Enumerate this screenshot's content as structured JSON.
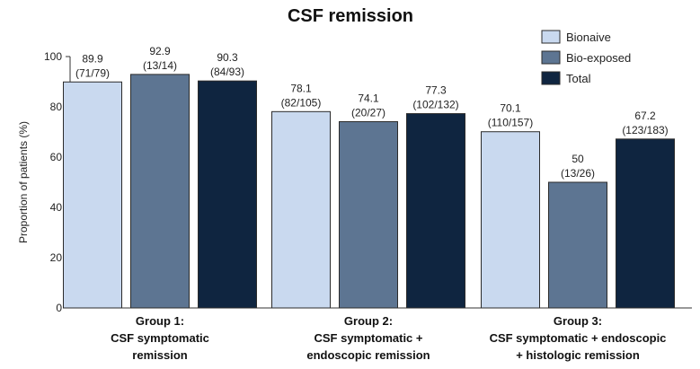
{
  "chart_data": {
    "type": "bar",
    "title": "CSF remission",
    "ylabel": "Proportion of patients (%)",
    "xlabel": "",
    "ylim": [
      0,
      100
    ],
    "yticks": [
      0,
      20,
      40,
      60,
      80,
      100
    ],
    "legend_position": "top-right",
    "grid": false,
    "categories": [
      [
        "Group 1:",
        "CSF symptomatic",
        "remission"
      ],
      [
        "Group 2:",
        "CSF symptomatic +",
        "endoscopic remission"
      ],
      [
        "Group 3:",
        "CSF symptomatic + endoscopic",
        "+ histologic remission"
      ]
    ],
    "series": [
      {
        "name": "Bionaive",
        "color": "#c9d9ef",
        "values": [
          89.9,
          78.1,
          70.1
        ],
        "counts": [
          "(71/79)",
          "(82/105)",
          "(110/157)"
        ]
      },
      {
        "name": "Bio-exposed",
        "color": "#5d7592",
        "values": [
          92.9,
          74.1,
          50
        ],
        "counts": [
          "(13/14)",
          "(20/27)",
          "(13/26)"
        ]
      },
      {
        "name": "Total",
        "color": "#0f2540",
        "values": [
          90.3,
          77.3,
          67.2
        ],
        "counts": [
          "(84/93)",
          "(102/132)",
          "(123/183)"
        ]
      }
    ]
  }
}
